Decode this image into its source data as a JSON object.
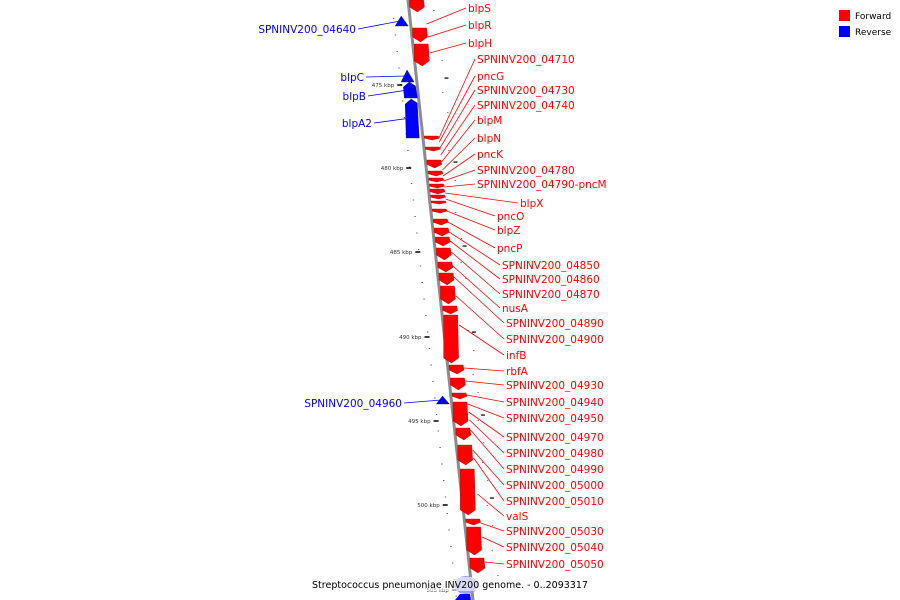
{
  "caption": "Streptococcus pneumoniae INV200 genome. - 0..2093317",
  "legend": [
    {
      "label": "Forward",
      "color": "#ff0000"
    },
    {
      "label": "Reverse",
      "color": "#0000ff"
    }
  ],
  "colors": {
    "forward": "#ff0000",
    "reverse": "#0000ff",
    "backbone": "#888888"
  },
  "ticks": [
    "475 kbp",
    "480 kbp",
    "485 kbp",
    "490 kbp",
    "495 kbp",
    "500 kbp",
    "505 kbp"
  ],
  "forward_genes": [
    "blpS",
    "blpR",
    "blpH",
    "SPNINV200_04710",
    "pncG",
    "SPNINV200_04730",
    "SPNINV200_04740",
    "blpM",
    "blpN",
    "pncK",
    "SPNINV200_04780",
    "SPNINV200_04790-pncM",
    "blpX",
    "pncO",
    "blpZ",
    "pncP",
    "SPNINV200_04850",
    "SPNINV200_04860",
    "SPNINV200_04870",
    "nusA",
    "SPNINV200_04890",
    "SPNINV200_04900",
    "infB",
    "rbfA",
    "SPNINV200_04930",
    "SPNINV200_04940",
    "SPNINV200_04950",
    "SPNINV200_04970",
    "SPNINV200_04980",
    "SPNINV200_04990",
    "SPNINV200_05000",
    "SPNINV200_05010",
    "valS",
    "SPNINV200_05030",
    "SPNINV200_05040",
    "SPNINV200_05050"
  ],
  "reverse_genes": [
    "SPNINV200_04640",
    "blpC",
    "blpB",
    "blpA2",
    "SPNINV200_04960"
  ]
}
